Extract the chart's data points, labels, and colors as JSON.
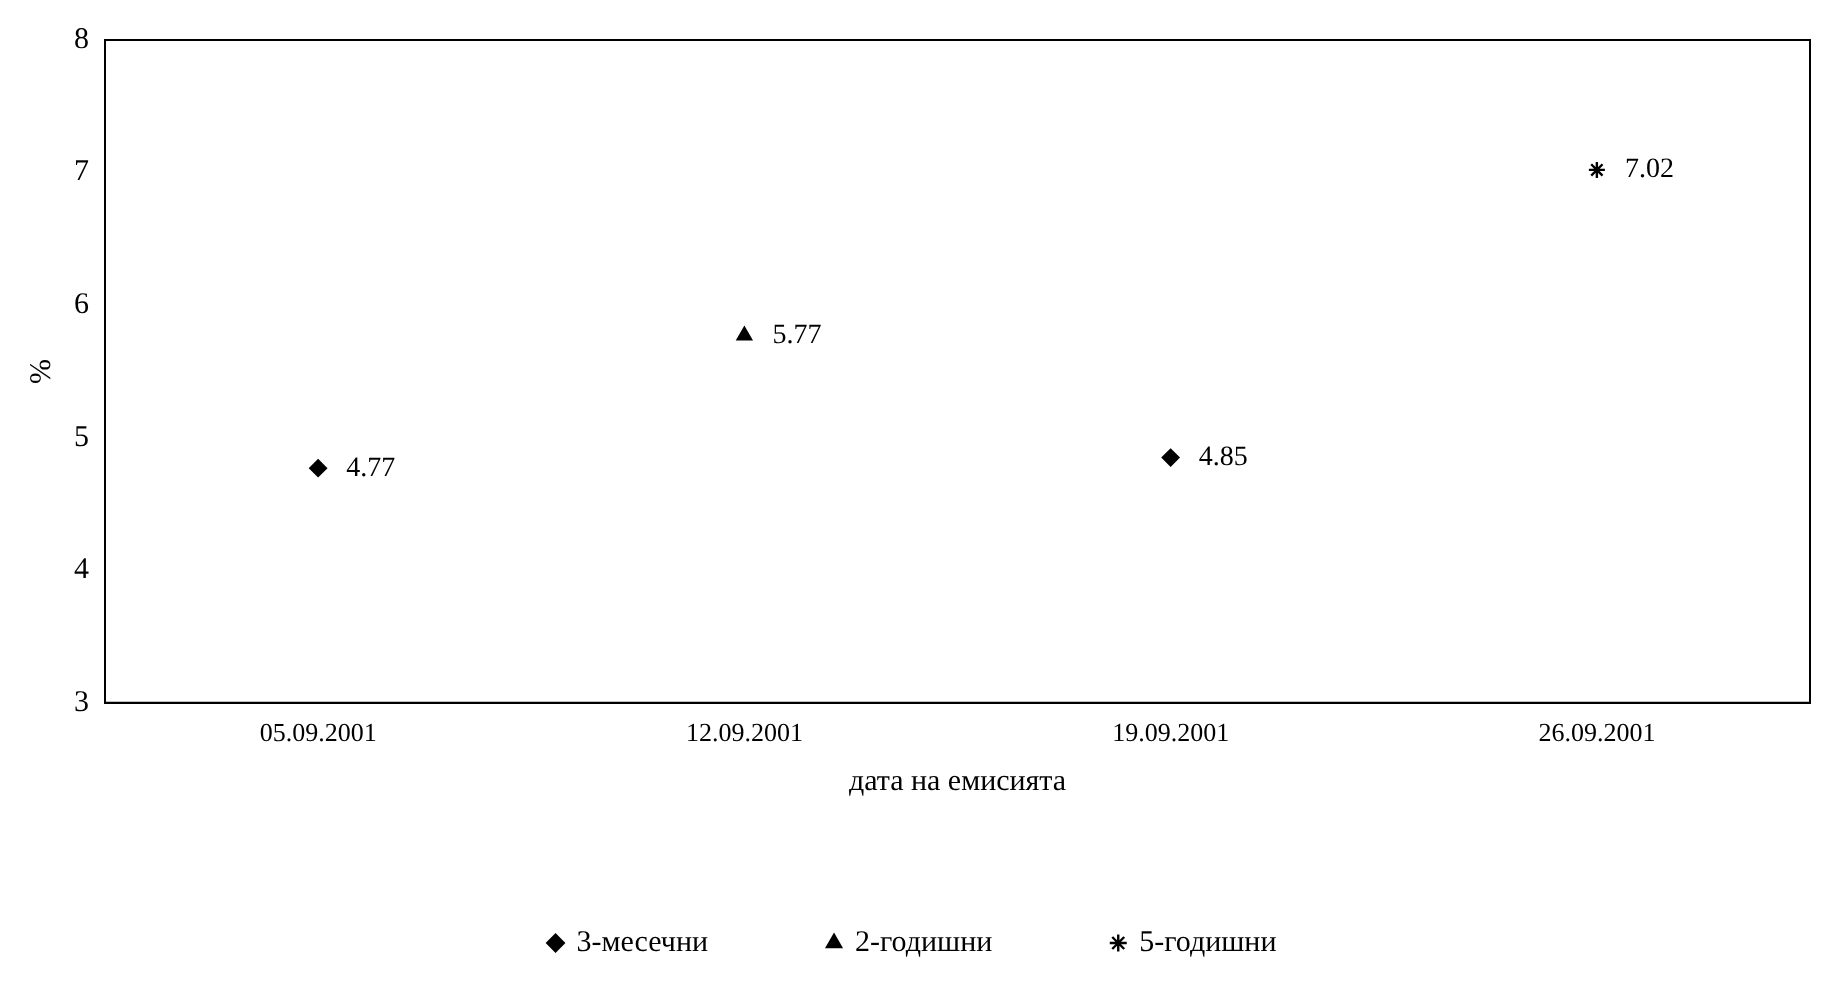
{
  "chart_data": {
    "type": "scatter",
    "xlabel": "дата на емисията",
    "ylabel": "%",
    "categories": [
      "05.09.2001",
      "12.09.2001",
      "19.09.2001",
      "26.09.2001"
    ],
    "series": [
      {
        "name": "3-месечни",
        "color": "#000000",
        "marker": "diamond",
        "values": [
          4.77,
          null,
          4.85,
          null
        ]
      },
      {
        "name": "2-годишни",
        "color": "#000000",
        "marker": "triangle",
        "values": [
          null,
          5.77,
          null,
          null
        ]
      },
      {
        "name": "5-годишни",
        "color": "#000000",
        "marker": "cross",
        "values": [
          null,
          null,
          null,
          7.02
        ]
      }
    ],
    "ylim": [
      3,
      8
    ],
    "yticks": [
      3,
      4,
      5,
      6,
      7,
      8
    ],
    "grid": false,
    "legend": "bottom",
    "data_labels": true
  }
}
